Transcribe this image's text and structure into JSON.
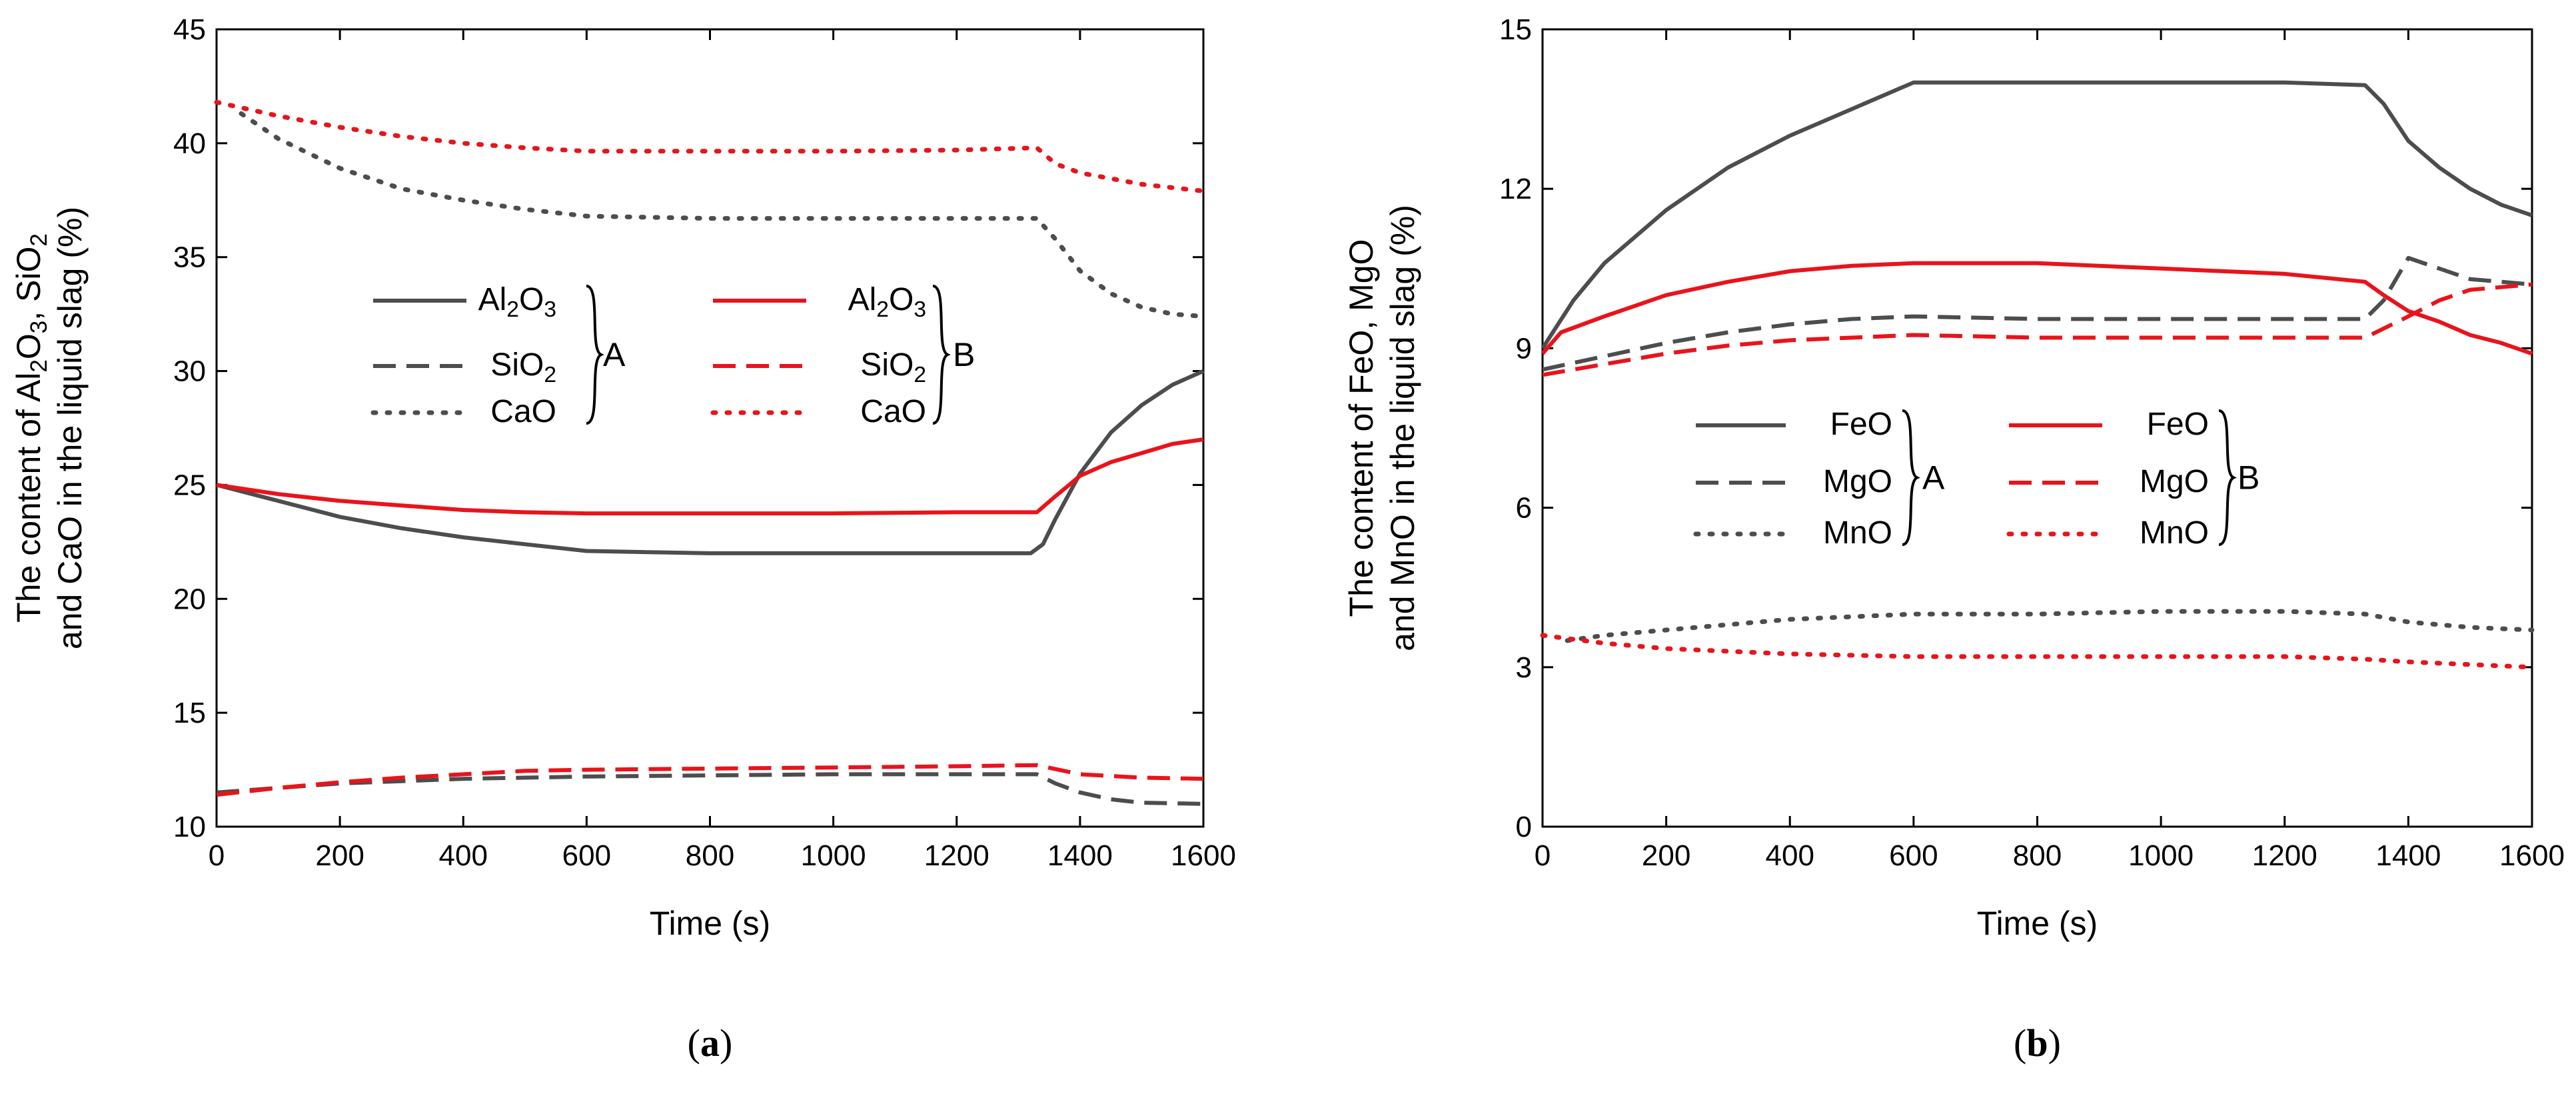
{
  "colors": {
    "A": "#4d4d4d",
    "B": "#e8141b",
    "axis": "#000000"
  },
  "chart_data": [
    {
      "panel": "a",
      "caption": {
        "open": "(",
        "letter": "a",
        "close": ")"
      },
      "type": "line",
      "xlabel": "Time (s)",
      "ylabel_lines": [
        [
          {
            "t": "The content of Al"
          },
          {
            "t": "2",
            "sub": true
          },
          {
            "t": "O"
          },
          {
            "t": "3",
            "sub": true
          },
          {
            "t": ", SiO"
          },
          {
            "t": "2",
            "sub": true
          }
        ],
        [
          {
            "t": "and CaO in the liquid slag (%)"
          }
        ]
      ],
      "xlim": [
        0,
        1600
      ],
      "ylim": [
        10,
        45
      ],
      "xticks": [
        0,
        200,
        400,
        600,
        800,
        1000,
        1200,
        1400,
        1600
      ],
      "yticks": [
        10,
        15,
        20,
        25,
        30,
        35,
        40,
        45
      ],
      "legend": {
        "groups": [
          {
            "label": "A",
            "color_key": "A",
            "entries": [
              {
                "style": "solid",
                "runs": [
                  {
                    "t": "Al"
                  },
                  {
                    "t": "2",
                    "sub": true
                  },
                  {
                    "t": "O"
                  },
                  {
                    "t": "3",
                    "sub": true
                  }
                ]
              },
              {
                "style": "dash",
                "runs": [
                  {
                    "t": "SiO"
                  },
                  {
                    "t": "2",
                    "sub": true
                  }
                ]
              },
              {
                "style": "dot",
                "runs": [
                  {
                    "t": "CaO"
                  }
                ]
              }
            ]
          },
          {
            "label": "B",
            "color_key": "B",
            "entries": [
              {
                "style": "solid",
                "runs": [
                  {
                    "t": "Al"
                  },
                  {
                    "t": "2",
                    "sub": true
                  },
                  {
                    "t": "O"
                  },
                  {
                    "t": "3",
                    "sub": true
                  }
                ]
              },
              {
                "style": "dash",
                "runs": [
                  {
                    "t": "SiO"
                  },
                  {
                    "t": "2",
                    "sub": true
                  }
                ]
              },
              {
                "style": "dot",
                "runs": [
                  {
                    "t": "CaO"
                  }
                ]
              }
            ]
          }
        ]
      },
      "series": [
        {
          "name": "Al2O3 A",
          "group": "A",
          "style": "solid",
          "points": [
            [
              0,
              25
            ],
            [
              100,
              24.3
            ],
            [
              200,
              23.6
            ],
            [
              300,
              23.1
            ],
            [
              400,
              22.7
            ],
            [
              500,
              22.4
            ],
            [
              600,
              22.1
            ],
            [
              700,
              22.05
            ],
            [
              800,
              22.0
            ],
            [
              1000,
              22.0
            ],
            [
              1200,
              22.0
            ],
            [
              1320,
              22.0
            ],
            [
              1340,
              22.4
            ],
            [
              1360,
              23.5
            ],
            [
              1400,
              25.5
            ],
            [
              1450,
              27.3
            ],
            [
              1500,
              28.5
            ],
            [
              1550,
              29.4
            ],
            [
              1600,
              30.0
            ]
          ]
        },
        {
          "name": "SiO2 A",
          "group": "A",
          "style": "dash",
          "points": [
            [
              0,
              11.5
            ],
            [
              100,
              11.7
            ],
            [
              200,
              11.9
            ],
            [
              300,
              12.0
            ],
            [
              400,
              12.1
            ],
            [
              600,
              12.2
            ],
            [
              800,
              12.25
            ],
            [
              1000,
              12.3
            ],
            [
              1200,
              12.3
            ],
            [
              1330,
              12.3
            ],
            [
              1360,
              11.9
            ],
            [
              1400,
              11.5
            ],
            [
              1450,
              11.2
            ],
            [
              1500,
              11.05
            ],
            [
              1600,
              11.0
            ]
          ]
        },
        {
          "name": "CaO A",
          "group": "A",
          "style": "dot",
          "points": [
            [
              40,
              41.3
            ],
            [
              100,
              40.2
            ],
            [
              200,
              38.9
            ],
            [
              300,
              38.0
            ],
            [
              400,
              37.5
            ],
            [
              500,
              37.1
            ],
            [
              600,
              36.8
            ],
            [
              800,
              36.7
            ],
            [
              1000,
              36.7
            ],
            [
              1200,
              36.7
            ],
            [
              1330,
              36.7
            ],
            [
              1360,
              35.8
            ],
            [
              1400,
              34.4
            ],
            [
              1450,
              33.4
            ],
            [
              1500,
              32.8
            ],
            [
              1550,
              32.5
            ],
            [
              1600,
              32.4
            ]
          ]
        },
        {
          "name": "Al2O3 B",
          "group": "B",
          "style": "solid",
          "points": [
            [
              0,
              25
            ],
            [
              100,
              24.6
            ],
            [
              200,
              24.3
            ],
            [
              300,
              24.1
            ],
            [
              400,
              23.9
            ],
            [
              500,
              23.8
            ],
            [
              600,
              23.75
            ],
            [
              800,
              23.75
            ],
            [
              1000,
              23.75
            ],
            [
              1200,
              23.8
            ],
            [
              1330,
              23.8
            ],
            [
              1360,
              24.5
            ],
            [
              1400,
              25.4
            ],
            [
              1450,
              26.0
            ],
            [
              1500,
              26.4
            ],
            [
              1550,
              26.8
            ],
            [
              1600,
              27.0
            ]
          ]
        },
        {
          "name": "SiO2 B",
          "group": "B",
          "style": "dash",
          "points": [
            [
              0,
              11.4
            ],
            [
              100,
              11.7
            ],
            [
              200,
              11.95
            ],
            [
              300,
              12.15
            ],
            [
              400,
              12.3
            ],
            [
              500,
              12.45
            ],
            [
              600,
              12.5
            ],
            [
              800,
              12.55
            ],
            [
              1000,
              12.6
            ],
            [
              1200,
              12.65
            ],
            [
              1330,
              12.7
            ],
            [
              1400,
              12.3
            ],
            [
              1500,
              12.15
            ],
            [
              1600,
              12.1
            ]
          ]
        },
        {
          "name": "CaO B",
          "group": "B",
          "style": "dot",
          "points": [
            [
              0,
              41.8
            ],
            [
              100,
              41.2
            ],
            [
              200,
              40.7
            ],
            [
              300,
              40.3
            ],
            [
              400,
              40.0
            ],
            [
              500,
              39.8
            ],
            [
              600,
              39.65
            ],
            [
              800,
              39.65
            ],
            [
              1000,
              39.65
            ],
            [
              1200,
              39.7
            ],
            [
              1330,
              39.8
            ],
            [
              1360,
              39.1
            ],
            [
              1400,
              38.7
            ],
            [
              1500,
              38.2
            ],
            [
              1600,
              37.9
            ]
          ]
        }
      ]
    },
    {
      "panel": "b",
      "caption": {
        "open": "(",
        "letter": "b",
        "close": ")"
      },
      "type": "line",
      "xlabel": "Time (s)",
      "ylabel_lines": [
        [
          {
            "t": "The content of FeO, MgO"
          }
        ],
        [
          {
            "t": "and MnO in the liquid slag (%)"
          }
        ]
      ],
      "xlim": [
        0,
        1600
      ],
      "ylim": [
        0,
        15
      ],
      "xticks": [
        0,
        200,
        400,
        600,
        800,
        1000,
        1200,
        1400,
        1600
      ],
      "yticks": [
        0,
        3,
        6,
        9,
        12,
        15
      ],
      "legend": {
        "groups": [
          {
            "label": "A",
            "color_key": "A",
            "entries": [
              {
                "style": "solid",
                "runs": [
                  {
                    "t": "FeO"
                  }
                ]
              },
              {
                "style": "dash",
                "runs": [
                  {
                    "t": "MgO"
                  }
                ]
              },
              {
                "style": "dot",
                "runs": [
                  {
                    "t": "MnO"
                  }
                ]
              }
            ]
          },
          {
            "label": "B",
            "color_key": "B",
            "entries": [
              {
                "style": "solid",
                "runs": [
                  {
                    "t": "FeO"
                  }
                ]
              },
              {
                "style": "dash",
                "runs": [
                  {
                    "t": "MgO"
                  }
                ]
              },
              {
                "style": "dot",
                "runs": [
                  {
                    "t": "MnO"
                  }
                ]
              }
            ]
          }
        ]
      },
      "series": [
        {
          "name": "FeO A",
          "group": "A",
          "style": "solid",
          "points": [
            [
              0,
              9.0
            ],
            [
              50,
              9.9
            ],
            [
              100,
              10.6
            ],
            [
              150,
              11.1
            ],
            [
              200,
              11.6
            ],
            [
              300,
              12.4
            ],
            [
              400,
              13.0
            ],
            [
              500,
              13.5
            ],
            [
              600,
              14.0
            ],
            [
              800,
              14.0
            ],
            [
              1000,
              14.0
            ],
            [
              1200,
              14.0
            ],
            [
              1330,
              13.95
            ],
            [
              1360,
              13.6
            ],
            [
              1400,
              12.9
            ],
            [
              1450,
              12.4
            ],
            [
              1500,
              12.0
            ],
            [
              1550,
              11.7
            ],
            [
              1600,
              11.5
            ]
          ]
        },
        {
          "name": "MgO A",
          "group": "A",
          "style": "dash",
          "points": [
            [
              0,
              8.6
            ],
            [
              100,
              8.85
            ],
            [
              200,
              9.1
            ],
            [
              300,
              9.3
            ],
            [
              400,
              9.45
            ],
            [
              500,
              9.55
            ],
            [
              600,
              9.6
            ],
            [
              800,
              9.55
            ],
            [
              1000,
              9.55
            ],
            [
              1200,
              9.55
            ],
            [
              1330,
              9.55
            ],
            [
              1360,
              9.9
            ],
            [
              1400,
              10.7
            ],
            [
              1450,
              10.5
            ],
            [
              1500,
              10.3
            ],
            [
              1600,
              10.2
            ]
          ]
        },
        {
          "name": "MnO A",
          "group": "A",
          "style": "dot",
          "points": [
            [
              40,
              3.5
            ],
            [
              100,
              3.6
            ],
            [
              200,
              3.7
            ],
            [
              300,
              3.8
            ],
            [
              400,
              3.9
            ],
            [
              500,
              3.95
            ],
            [
              600,
              4.0
            ],
            [
              800,
              4.0
            ],
            [
              1000,
              4.05
            ],
            [
              1200,
              4.05
            ],
            [
              1330,
              4.0
            ],
            [
              1400,
              3.85
            ],
            [
              1500,
              3.75
            ],
            [
              1600,
              3.7
            ]
          ]
        },
        {
          "name": "FeO B",
          "group": "B",
          "style": "solid",
          "points": [
            [
              0,
              8.9
            ],
            [
              30,
              9.3
            ],
            [
              100,
              9.6
            ],
            [
              200,
              10.0
            ],
            [
              300,
              10.25
            ],
            [
              400,
              10.45
            ],
            [
              500,
              10.55
            ],
            [
              600,
              10.6
            ],
            [
              800,
              10.6
            ],
            [
              1000,
              10.5
            ],
            [
              1200,
              10.4
            ],
            [
              1330,
              10.25
            ],
            [
              1360,
              10.0
            ],
            [
              1400,
              9.7
            ],
            [
              1450,
              9.5
            ],
            [
              1500,
              9.25
            ],
            [
              1550,
              9.1
            ],
            [
              1600,
              8.9
            ]
          ]
        },
        {
          "name": "MgO B",
          "group": "B",
          "style": "dash",
          "points": [
            [
              0,
              8.5
            ],
            [
              100,
              8.7
            ],
            [
              200,
              8.9
            ],
            [
              300,
              9.05
            ],
            [
              400,
              9.15
            ],
            [
              500,
              9.2
            ],
            [
              600,
              9.25
            ],
            [
              800,
              9.2
            ],
            [
              1000,
              9.2
            ],
            [
              1200,
              9.2
            ],
            [
              1330,
              9.2
            ],
            [
              1400,
              9.6
            ],
            [
              1450,
              9.9
            ],
            [
              1500,
              10.1
            ],
            [
              1600,
              10.2
            ]
          ]
        },
        {
          "name": "MnO B",
          "group": "B",
          "style": "dot",
          "points": [
            [
              0,
              3.6
            ],
            [
              100,
              3.45
            ],
            [
              200,
              3.35
            ],
            [
              300,
              3.3
            ],
            [
              400,
              3.25
            ],
            [
              600,
              3.2
            ],
            [
              800,
              3.2
            ],
            [
              1000,
              3.2
            ],
            [
              1200,
              3.2
            ],
            [
              1330,
              3.15
            ],
            [
              1400,
              3.1
            ],
            [
              1500,
              3.05
            ],
            [
              1600,
              3.0
            ]
          ]
        }
      ]
    }
  ]
}
